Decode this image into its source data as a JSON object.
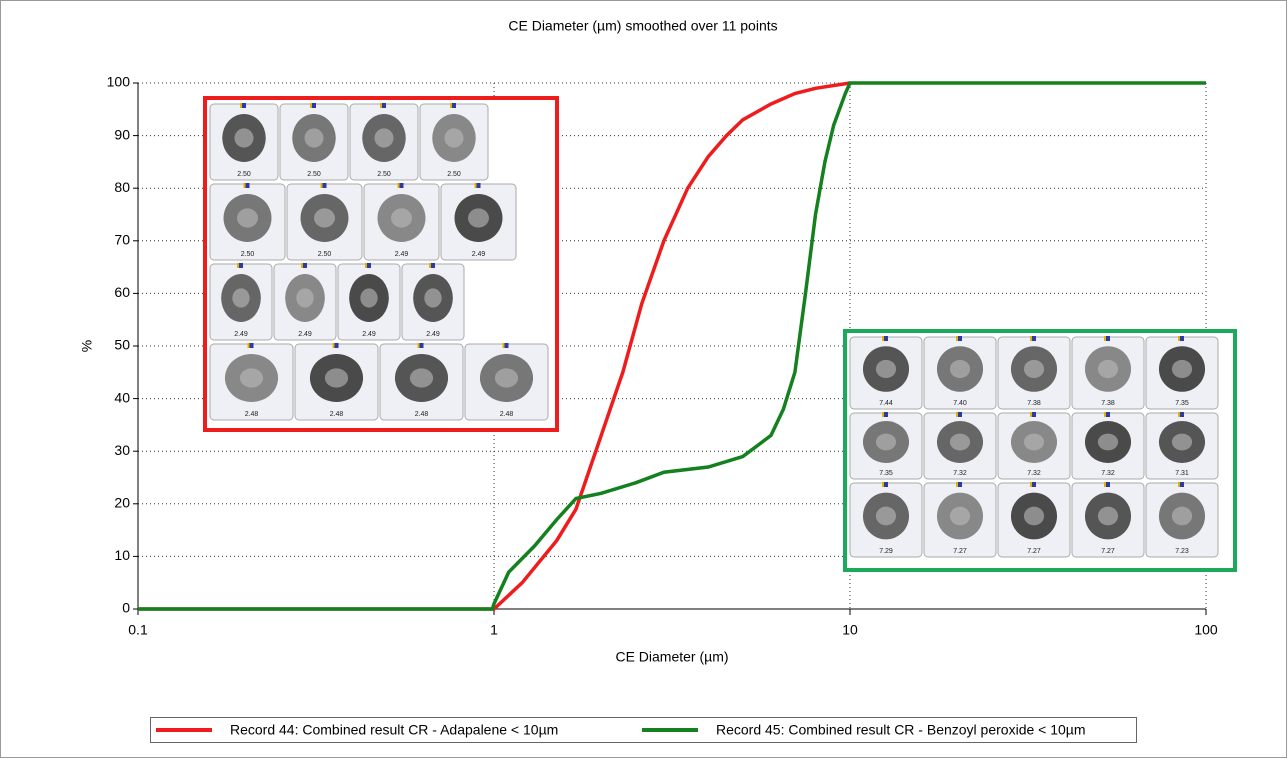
{
  "chart_data": {
    "type": "line",
    "title": "CE Diameter (µm) smoothed over 11 points",
    "x_label": "CE Diameter (µm)",
    "y_label": "%",
    "log_x": true,
    "grid": true,
    "xlim": [
      0.1,
      100
    ],
    "ylim": [
      0,
      100
    ],
    "xticks": [
      0.1,
      1,
      10,
      100
    ],
    "yticks": [
      0,
      10,
      20,
      30,
      40,
      50,
      60,
      70,
      80,
      90,
      100
    ],
    "legend": "bottom",
    "series": [
      {
        "name": "Record 44: Combined result CR - Adapalene < 10µm",
        "color": "#ee1c1c",
        "x": [
          0.1,
          1.0,
          1.2,
          1.5,
          1.7,
          2.0,
          2.3,
          2.6,
          3.0,
          3.5,
          4.0,
          4.5,
          5.0,
          6.0,
          7.0,
          8.0,
          10
        ],
        "values": [
          0,
          0,
          5,
          13,
          19,
          33,
          45,
          58,
          70,
          80,
          86,
          90,
          93,
          96,
          98,
          99,
          100
        ]
      },
      {
        "name": "Record 45: Combined result CR - Benzoyl peroxide < 10µm",
        "color": "#14801e",
        "x": [
          0.1,
          0.99,
          1.0,
          1.1,
          1.3,
          1.5,
          1.7,
          2.0,
          2.5,
          3.0,
          4.0,
          5.0,
          6.0,
          6.5,
          7.0,
          7.5,
          8.0,
          8.5,
          9.0,
          9.7,
          10,
          100
        ],
        "values": [
          0,
          0,
          1,
          7,
          12,
          17,
          21,
          22,
          24,
          26,
          27,
          29,
          33,
          38,
          45,
          60,
          75,
          85,
          92,
          98,
          100,
          100
        ]
      }
    ],
    "particle_images": [
      {
        "color": "#ee1c1c",
        "rows": [
          [
            "2.50",
            "2.50",
            "2.50",
            "2.50"
          ],
          [
            "2.50",
            "2.50",
            "2.49",
            "2.49"
          ],
          [
            "2.49",
            "2.49",
            "2.49",
            "2.49"
          ],
          [
            "2.48",
            "2.48",
            "2.48",
            "2.48"
          ]
        ]
      },
      {
        "color": "#1aaa5a",
        "rows": [
          [
            "7.44",
            "7.40",
            "7.38",
            "7.38",
            "7.35"
          ],
          [
            "7.35",
            "7.32",
            "7.32",
            "7.32",
            "7.31"
          ],
          [
            "7.29",
            "7.27",
            "7.27",
            "7.27",
            "7.23"
          ]
        ]
      }
    ]
  }
}
